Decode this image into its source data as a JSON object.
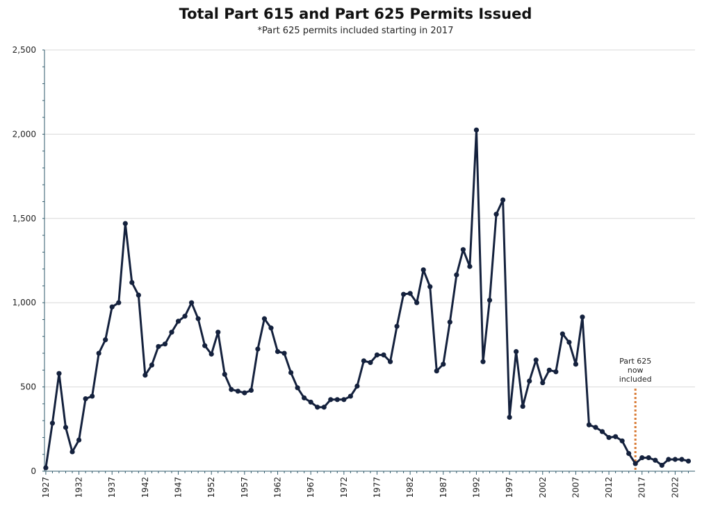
{
  "chart_data": {
    "type": "line",
    "title": "Total Part 615 and Part 625 Permits Issued",
    "subtitle": "*Part 625 permits included starting in 2017",
    "xlabel": "",
    "ylabel": "",
    "ylim": [
      0,
      2500
    ],
    "yticks": [
      "0",
      "500",
      "1,000",
      "1,500",
      "2,000",
      "2,500"
    ],
    "ytick_values": [
      0,
      500,
      1000,
      1500,
      2000,
      2500
    ],
    "xticks": [
      "1927",
      "1932",
      "1937",
      "1942",
      "1947",
      "1952",
      "1957",
      "1962",
      "1967",
      "1972",
      "1977",
      "1982",
      "1987",
      "1992",
      "1997",
      "2002",
      "2007",
      "2012",
      "2017",
      "2022"
    ],
    "xtick_values": [
      1927,
      1932,
      1937,
      1942,
      1947,
      1952,
      1957,
      1962,
      1967,
      1972,
      1977,
      1982,
      1987,
      1992,
      1997,
      2002,
      2007,
      2012,
      2017,
      2022
    ],
    "x": [
      1927,
      1928,
      1929,
      1930,
      1931,
      1932,
      1933,
      1934,
      1935,
      1936,
      1937,
      1938,
      1939,
      1940,
      1941,
      1942,
      1943,
      1944,
      1945,
      1946,
      1947,
      1948,
      1949,
      1950,
      1951,
      1952,
      1953,
      1954,
      1955,
      1956,
      1957,
      1958,
      1959,
      1960,
      1961,
      1962,
      1963,
      1964,
      1965,
      1966,
      1967,
      1968,
      1969,
      1970,
      1971,
      1972,
      1973,
      1974,
      1975,
      1976,
      1977,
      1978,
      1979,
      1980,
      1981,
      1982,
      1983,
      1984,
      1985,
      1986,
      1987,
      1988,
      1989,
      1990,
      1991,
      1992,
      1993,
      1994,
      1995,
      1996,
      1997,
      1998,
      1999,
      2000,
      2001,
      2002,
      2003,
      2004,
      2005,
      2006,
      2007,
      2008,
      2009,
      2010,
      2011,
      2012,
      2013,
      2014,
      2015,
      2016,
      2017,
      2018,
      2019,
      2020,
      2021,
      2022,
      2023,
      2024
    ],
    "series": [
      {
        "color": "#14213d",
        "values": [
          20,
          285,
          580,
          260,
          115,
          185,
          430,
          445,
          700,
          780,
          975,
          1000,
          1470,
          1120,
          1045,
          570,
          630,
          740,
          755,
          825,
          890,
          920,
          1000,
          905,
          745,
          695,
          825,
          575,
          485,
          475,
          465,
          480,
          725,
          905,
          850,
          710,
          700,
          585,
          495,
          435,
          410,
          380,
          380,
          425,
          425,
          425,
          445,
          505,
          655,
          645,
          690,
          690,
          650,
          860,
          1050,
          1055,
          1000,
          1195,
          1095,
          595,
          635,
          885,
          1165,
          1315,
          1215,
          2025,
          650,
          1015,
          1525,
          1610,
          320,
          710,
          385,
          535,
          660,
          525,
          600,
          590,
          815,
          765,
          635,
          915,
          275,
          260,
          235,
          200,
          205,
          180,
          105,
          45,
          80,
          80,
          65,
          35,
          70,
          70,
          70,
          60
        ]
      }
    ],
    "annotation": {
      "lines": [
        "Part 625",
        "now",
        "included"
      ],
      "x": 2016,
      "color": "#d97b35"
    },
    "grid": "horizontal",
    "colors": {
      "line": "#14213d",
      "grid": "#d9d9d9",
      "axis": "#2f5a6b",
      "marker_line": "#d97b35"
    }
  }
}
